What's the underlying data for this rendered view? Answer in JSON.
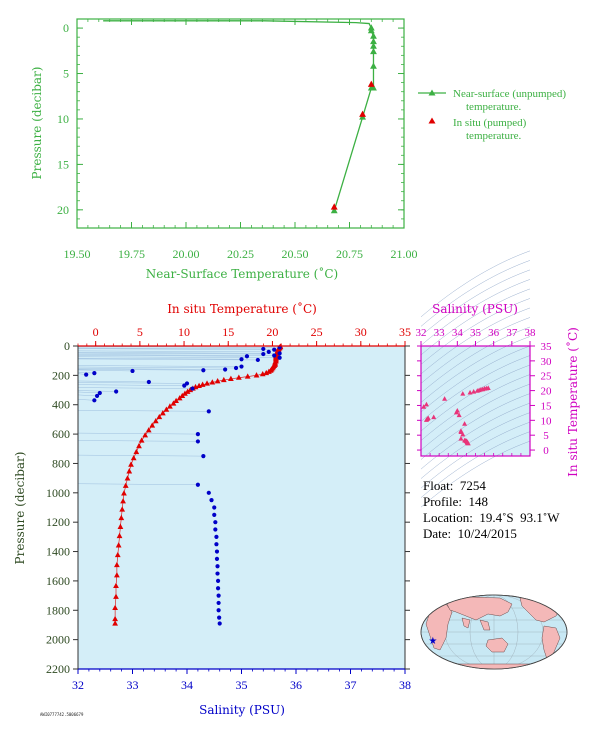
{
  "colors": {
    "green": "#3cb043",
    "red": "#e00000",
    "blue": "#0000c8",
    "magenta": "#d000c0",
    "pink": "#e8357a",
    "panel_bg": "#d4eef8",
    "land": "#f4b8b8",
    "ocean": "#c8e8f4"
  },
  "chart_data": [
    {
      "type": "line",
      "id": "near-surface",
      "xlabel": "Near-Surface Temperature (˚C)",
      "ylabel": "Pressure (decibar)",
      "xlim": [
        19.5,
        21.0
      ],
      "ylim": [
        22,
        -1
      ],
      "xticks": [
        "19.50",
        "19.75",
        "20.00",
        "20.25",
        "20.50",
        "20.75",
        "21.00"
      ],
      "yticks": [
        "0",
        "5",
        "10",
        "15",
        "20"
      ],
      "legend": [
        {
          "label_line1": "Near-surface (unpumped)",
          "label_line2": "temperature."
        },
        {
          "label_line1": "In situ (pumped)",
          "label_line2": "temperature."
        }
      ],
      "series": [
        {
          "name": "Near-surface (unpumped) temperature.",
          "x": [
            19.62,
            20.36,
            20.78,
            20.84,
            20.85,
            20.85,
            20.86,
            20.86,
            20.86,
            20.86,
            20.86,
            20.86,
            20.85,
            20.81,
            20.68
          ],
          "y": [
            -0.8,
            -0.8,
            -0.6,
            -0.5,
            0.0,
            0.3,
            0.9,
            1.5,
            2.0,
            2.6,
            4.2,
            6.6,
            6.6,
            9.8,
            20.1
          ]
        },
        {
          "name": "In situ (pumped) temperature.",
          "x": [
            20.85,
            20.81,
            20.68
          ],
          "y": [
            6.2,
            9.5,
            19.7
          ]
        }
      ]
    },
    {
      "type": "scatter",
      "id": "profile",
      "top_xlabel": "In situ Temperature (˚C)",
      "bottom_xlabel": "Salinity (PSU)",
      "ylabel": "Pressure (decibar)",
      "temp_lim": [
        -2,
        35
      ],
      "sal_lim": [
        32,
        38
      ],
      "ylim": [
        2200,
        0
      ],
      "temp_ticks": [
        "0",
        "5",
        "10",
        "15",
        "20",
        "25",
        "30",
        "35"
      ],
      "sal_ticks": [
        "32",
        "33",
        "34",
        "35",
        "36",
        "37",
        "38"
      ],
      "yticks": [
        "0",
        "200",
        "400",
        "600",
        "800",
        "1000",
        "1200",
        "1400",
        "1600",
        "1800",
        "2000",
        "2200"
      ],
      "temperature": {
        "name": "In situ Temperature",
        "points": [
          [
            20.9,
            4
          ],
          [
            20.9,
            8
          ],
          [
            20.8,
            12
          ],
          [
            20.8,
            16
          ],
          [
            20.7,
            20
          ],
          [
            20.7,
            25
          ],
          [
            20.6,
            30
          ],
          [
            20.6,
            36
          ],
          [
            20.6,
            42
          ],
          [
            20.5,
            48
          ],
          [
            20.5,
            56
          ],
          [
            20.5,
            64
          ],
          [
            20.4,
            72
          ],
          [
            20.4,
            80
          ],
          [
            20.4,
            88
          ],
          [
            20.4,
            96
          ],
          [
            20.4,
            104
          ],
          [
            20.3,
            112
          ],
          [
            20.3,
            120
          ],
          [
            20.3,
            128
          ],
          [
            20.2,
            136
          ],
          [
            20.1,
            144
          ],
          [
            20.0,
            152
          ],
          [
            19.9,
            160
          ],
          [
            19.8,
            168
          ],
          [
            19.6,
            176
          ],
          [
            19.3,
            184
          ],
          [
            18.9,
            192
          ],
          [
            18.2,
            200
          ],
          [
            17.2,
            208
          ],
          [
            16.2,
            216
          ],
          [
            15.3,
            224
          ],
          [
            14.5,
            232
          ],
          [
            13.8,
            240
          ],
          [
            13.2,
            248
          ],
          [
            12.6,
            256
          ],
          [
            12.1,
            264
          ],
          [
            11.7,
            272
          ],
          [
            11.3,
            280
          ],
          [
            11.0,
            290
          ],
          [
            10.7,
            300
          ],
          [
            10.4,
            312
          ],
          [
            10.1,
            325
          ],
          [
            9.8,
            340
          ],
          [
            9.5,
            356
          ],
          [
            9.1,
            374
          ],
          [
            8.8,
            392
          ],
          [
            8.4,
            412
          ],
          [
            8.0,
            434
          ],
          [
            7.6,
            458
          ],
          [
            7.2,
            484
          ],
          [
            6.8,
            512
          ],
          [
            6.4,
            542
          ],
          [
            6.0,
            574
          ],
          [
            5.6,
            608
          ],
          [
            5.2,
            644
          ],
          [
            4.9,
            682
          ],
          [
            4.6,
            722
          ],
          [
            4.3,
            764
          ],
          [
            4.0,
            808
          ],
          [
            3.8,
            854
          ],
          [
            3.6,
            902
          ],
          [
            3.4,
            952
          ],
          [
            3.2,
            1004
          ],
          [
            3.1,
            1058
          ],
          [
            3.0,
            1114
          ],
          [
            2.9,
            1172
          ],
          [
            2.8,
            1232
          ],
          [
            2.7,
            1294
          ],
          [
            2.6,
            1358
          ],
          [
            2.5,
            1424
          ],
          [
            2.4,
            1492
          ],
          [
            2.4,
            1562
          ],
          [
            2.3,
            1634
          ],
          [
            2.3,
            1708
          ],
          [
            2.2,
            1784
          ],
          [
            2.2,
            1860
          ],
          [
            2.2,
            1890
          ]
        ]
      },
      "salinity": {
        "name": "Salinity",
        "points": [
          [
            35.7,
            10
          ],
          [
            35.4,
            20
          ],
          [
            35.6,
            25
          ],
          [
            35.5,
            40
          ],
          [
            35.7,
            50
          ],
          [
            35.4,
            55
          ],
          [
            35.6,
            65
          ],
          [
            35.1,
            70
          ],
          [
            35.7,
            80
          ],
          [
            35.0,
            90
          ],
          [
            35.3,
            95
          ],
          [
            35.0,
            140
          ],
          [
            34.9,
            150
          ],
          [
            34.7,
            160
          ],
          [
            34.3,
            165
          ],
          [
            33.0,
            170
          ],
          [
            32.3,
            185
          ],
          [
            32.15,
            195
          ],
          [
            33.3,
            245
          ],
          [
            34.0,
            255
          ],
          [
            33.95,
            270
          ],
          [
            34.1,
            290
          ],
          [
            32.7,
            310
          ],
          [
            32.4,
            320
          ],
          [
            32.35,
            340
          ],
          [
            32.3,
            370
          ],
          [
            34.4,
            445
          ],
          [
            34.2,
            600
          ],
          [
            34.2,
            650
          ],
          [
            34.3,
            750
          ],
          [
            34.2,
            945
          ],
          [
            34.4,
            1000
          ],
          [
            34.45,
            1050
          ],
          [
            34.5,
            1100
          ],
          [
            34.5,
            1150
          ],
          [
            34.52,
            1200
          ],
          [
            34.52,
            1250
          ],
          [
            34.54,
            1300
          ],
          [
            34.54,
            1350
          ],
          [
            34.55,
            1400
          ],
          [
            34.55,
            1450
          ],
          [
            34.56,
            1500
          ],
          [
            34.56,
            1550
          ],
          [
            34.57,
            1600
          ],
          [
            34.57,
            1650
          ],
          [
            34.58,
            1700
          ],
          [
            34.58,
            1750
          ],
          [
            34.58,
            1800
          ],
          [
            34.59,
            1850
          ],
          [
            34.6,
            1890
          ]
        ]
      }
    },
    {
      "type": "scatter",
      "id": "ts-diagram",
      "top_xlabel": "Salinity (PSU)",
      "right_ylabel": "In situ Temperature (˚C)",
      "xlim": [
        32,
        38
      ],
      "ylim": [
        -2,
        35
      ],
      "xticks": [
        "32",
        "33",
        "34",
        "35",
        "36",
        "37",
        "38"
      ],
      "yticks": [
        "0",
        "5",
        "10",
        "15",
        "20",
        "25",
        "30",
        "35"
      ],
      "points": [
        [
          35.7,
          20.8
        ],
        [
          35.6,
          20.7
        ],
        [
          35.5,
          20.6
        ],
        [
          35.4,
          20.4
        ],
        [
          35.3,
          20.3
        ],
        [
          35.2,
          20.1
        ],
        [
          35.1,
          19.9
        ],
        [
          34.9,
          19.6
        ],
        [
          34.7,
          19.3
        ],
        [
          34.3,
          18.9
        ],
        [
          33.3,
          17.2
        ],
        [
          32.3,
          15.3
        ],
        [
          32.15,
          14.5
        ],
        [
          34.0,
          13.2
        ],
        [
          33.95,
          12.6
        ],
        [
          34.1,
          11.7
        ],
        [
          32.7,
          11.0
        ],
        [
          32.4,
          10.7
        ],
        [
          32.35,
          10.4
        ],
        [
          32.3,
          10.1
        ],
        [
          34.4,
          8.8
        ],
        [
          34.2,
          6.4
        ],
        [
          34.2,
          6.0
        ],
        [
          34.3,
          5.2
        ],
        [
          34.2,
          3.8
        ],
        [
          34.4,
          3.2
        ],
        [
          34.45,
          3.1
        ],
        [
          34.5,
          3.0
        ],
        [
          34.52,
          2.9
        ],
        [
          34.54,
          2.7
        ],
        [
          34.55,
          2.6
        ],
        [
          34.56,
          2.5
        ],
        [
          34.57,
          2.4
        ],
        [
          34.58,
          2.3
        ],
        [
          34.6,
          2.2
        ]
      ]
    }
  ],
  "float_info": {
    "float": "Float:  7254",
    "profile": "Profile:  148",
    "location": "Location:  19.4˚S  93.1˚W",
    "date": "Date:  10/24/2015"
  },
  "map": {
    "marker_lon": -93.1,
    "marker_lat": -19.4
  },
  "footer_stamp": "AWI0777742.5006679"
}
